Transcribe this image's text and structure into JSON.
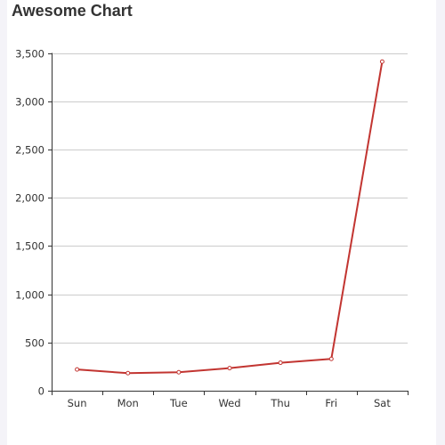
{
  "page": {
    "accent_color": "#c23531"
  },
  "chart_data": {
    "type": "line",
    "title": "Awesome Chart",
    "xlabel": "",
    "ylabel": "",
    "categories": [
      "Sun",
      "Mon",
      "Tue",
      "Wed",
      "Thu",
      "Fri",
      "Sat"
    ],
    "series": [
      {
        "values": [
          220,
          182,
          191,
          234,
          290,
          330,
          3410
        ],
        "color": "#c23531"
      }
    ],
    "ylim": [
      0,
      3500
    ],
    "yticks": [
      0,
      500,
      1000,
      1500,
      2000,
      2500,
      3000,
      3500
    ],
    "ytick_labels": [
      "0",
      "500",
      "1,000",
      "1,500",
      "2,000",
      "2,500",
      "3,000",
      "3,500"
    ],
    "grid": true,
    "legend": "none"
  }
}
